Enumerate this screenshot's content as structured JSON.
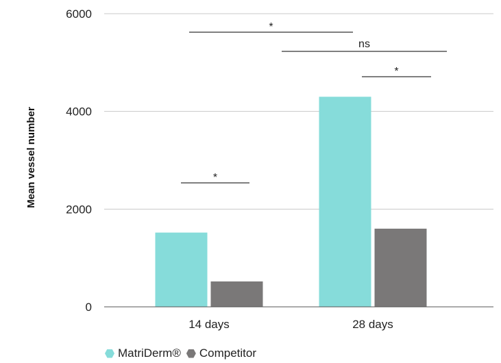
{
  "chart_data": {
    "type": "bar",
    "categories": [
      "14 days",
      "28 days"
    ],
    "series": [
      {
        "name": "MatriDerm®",
        "values": [
          1520,
          4300
        ],
        "color": "#86dcda"
      },
      {
        "name": "Competitor",
        "values": [
          520,
          1600
        ],
        "color": "#7a7878"
      }
    ],
    "ylabel": "Mean vessel number",
    "ylim": [
      0,
      6000
    ],
    "yticks": [
      0,
      2000,
      4000,
      6000
    ],
    "grid": true,
    "legend": "bottom-left",
    "significance": [
      {
        "label": "*",
        "between": "MatriDerm® 14 days vs Competitor 14 days"
      },
      {
        "label": "*",
        "between": "MatriDerm® 14 days vs MatriDerm® 28 days"
      },
      {
        "label": "ns",
        "between": "MatriDerm® 28 days vs Competitor 28 days (cross-time)"
      },
      {
        "label": "*",
        "between": "MatriDerm® 28 days vs Competitor 28 days"
      }
    ]
  }
}
